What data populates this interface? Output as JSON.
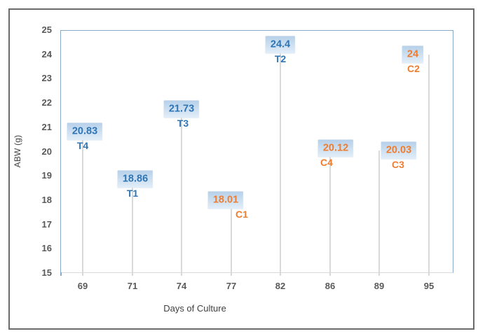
{
  "chart_data": {
    "type": "scatter",
    "subtype": "labeled-points-with-drop-lines",
    "title": "",
    "xlabel": "Days of Culture",
    "ylabel": "ABW (g)",
    "ylim": [
      15,
      25
    ],
    "y_ticks": [
      25,
      24,
      23,
      22,
      21,
      20,
      19,
      18,
      17,
      16,
      15
    ],
    "categories": [
      "69",
      "71",
      "74",
      "77",
      "82",
      "86",
      "89",
      "95"
    ],
    "series_colors": {
      "T": "#2E75B6",
      "C": "#ED7D31"
    },
    "points": [
      {
        "day": "69",
        "label": "T4",
        "value": 20.83,
        "value_label": "20.83",
        "series": "T",
        "label_dx": 3,
        "name_dx": 0
      },
      {
        "day": "71",
        "label": "T1",
        "value": 18.86,
        "value_label": "18.86",
        "series": "T",
        "label_dx": 4,
        "name_dx": 0
      },
      {
        "day": "74",
        "label": "T3",
        "value": 21.73,
        "value_label": "21.73",
        "series": "T",
        "label_dx": 0,
        "name_dx": 2
      },
      {
        "day": "77",
        "label": "C1",
        "value": 18.01,
        "value_label": "18.01",
        "series": "C",
        "label_dx": -8,
        "name_dx": 15
      },
      {
        "day": "82",
        "label": "T2",
        "value": 24.4,
        "value_label": "24.4",
        "series": "T",
        "label_dx": 0,
        "name_dx": 0
      },
      {
        "day": "86",
        "label": "C4",
        "value": 20.12,
        "value_label": "20.12",
        "series": "C",
        "label_dx": 8,
        "name_dx": -5
      },
      {
        "day": "89",
        "label": "C3",
        "value": 20.03,
        "value_label": "20.03",
        "series": "C",
        "label_dx": 28,
        "name_dx": 27
      },
      {
        "day": "95",
        "label": "C2",
        "value": 24,
        "value_label": "24",
        "series": "C",
        "label_dx": -23,
        "name_dx": -22
      }
    ],
    "colors": {
      "treatment_blue": "#2E75B6",
      "control_orange": "#ED7D31",
      "axis_line": "#88AAC9",
      "drop_line": "#D9D9D9",
      "tick_text": "#595959",
      "axis_title_text": "#404040",
      "label_box_top": "#B6D0E9",
      "label_box_bottom": "#E3EEF8",
      "outer_frame": "#6B6B6B"
    },
    "legend": "none",
    "grid": "off"
  }
}
